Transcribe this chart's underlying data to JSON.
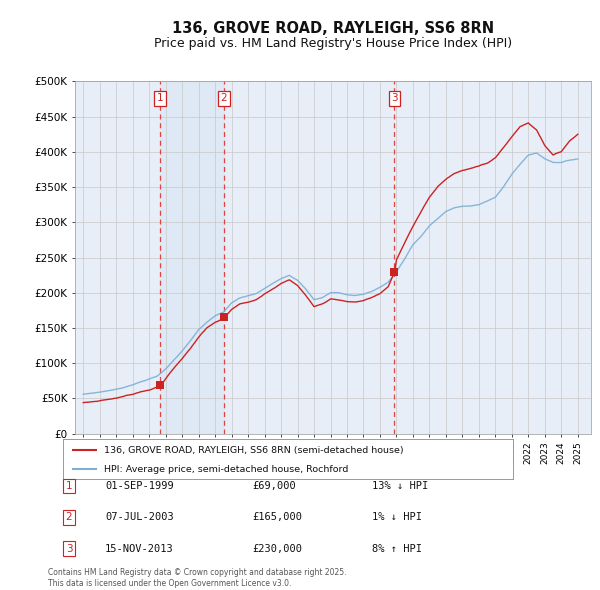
{
  "title": "136, GROVE ROAD, RAYLEIGH, SS6 8RN",
  "subtitle": "Price paid vs. HM Land Registry's House Price Index (HPI)",
  "hpi_label": "HPI: Average price, semi-detached house, Rochford",
  "property_label": "136, GROVE ROAD, RAYLEIGH, SS6 8RN (semi-detached house)",
  "copyright_text": "Contains HM Land Registry data © Crown copyright and database right 2025.\nThis data is licensed under the Open Government Licence v3.0.",
  "sale_points": [
    {
      "index": 1,
      "date": "01-SEP-1999",
      "price": 69000,
      "year": 1999.67,
      "pct": "13%",
      "dir": "↓"
    },
    {
      "index": 2,
      "date": "07-JUL-2003",
      "price": 165000,
      "year": 2003.52,
      "pct": "1%",
      "dir": "↓"
    },
    {
      "index": 3,
      "date": "15-NOV-2013",
      "price": 230000,
      "year": 2013.88,
      "pct": "8%",
      "dir": "↑"
    }
  ],
  "ylim": [
    0,
    500000
  ],
  "ytick_vals": [
    0,
    50000,
    100000,
    150000,
    200000,
    250000,
    300000,
    350000,
    400000,
    450000,
    500000
  ],
  "ytick_labels": [
    "£0",
    "£50K",
    "£100K",
    "£150K",
    "£200K",
    "£250K",
    "£300K",
    "£350K",
    "£400K",
    "£450K",
    "£500K"
  ],
  "xlim_start": 1994.5,
  "xlim_end": 2025.8,
  "hpi_color": "#7bafd4",
  "price_color": "#cc2222",
  "background_color": "#e8eef8",
  "grid_color": "#c8c8c8",
  "title_fontsize": 10.5,
  "subtitle_fontsize": 9
}
